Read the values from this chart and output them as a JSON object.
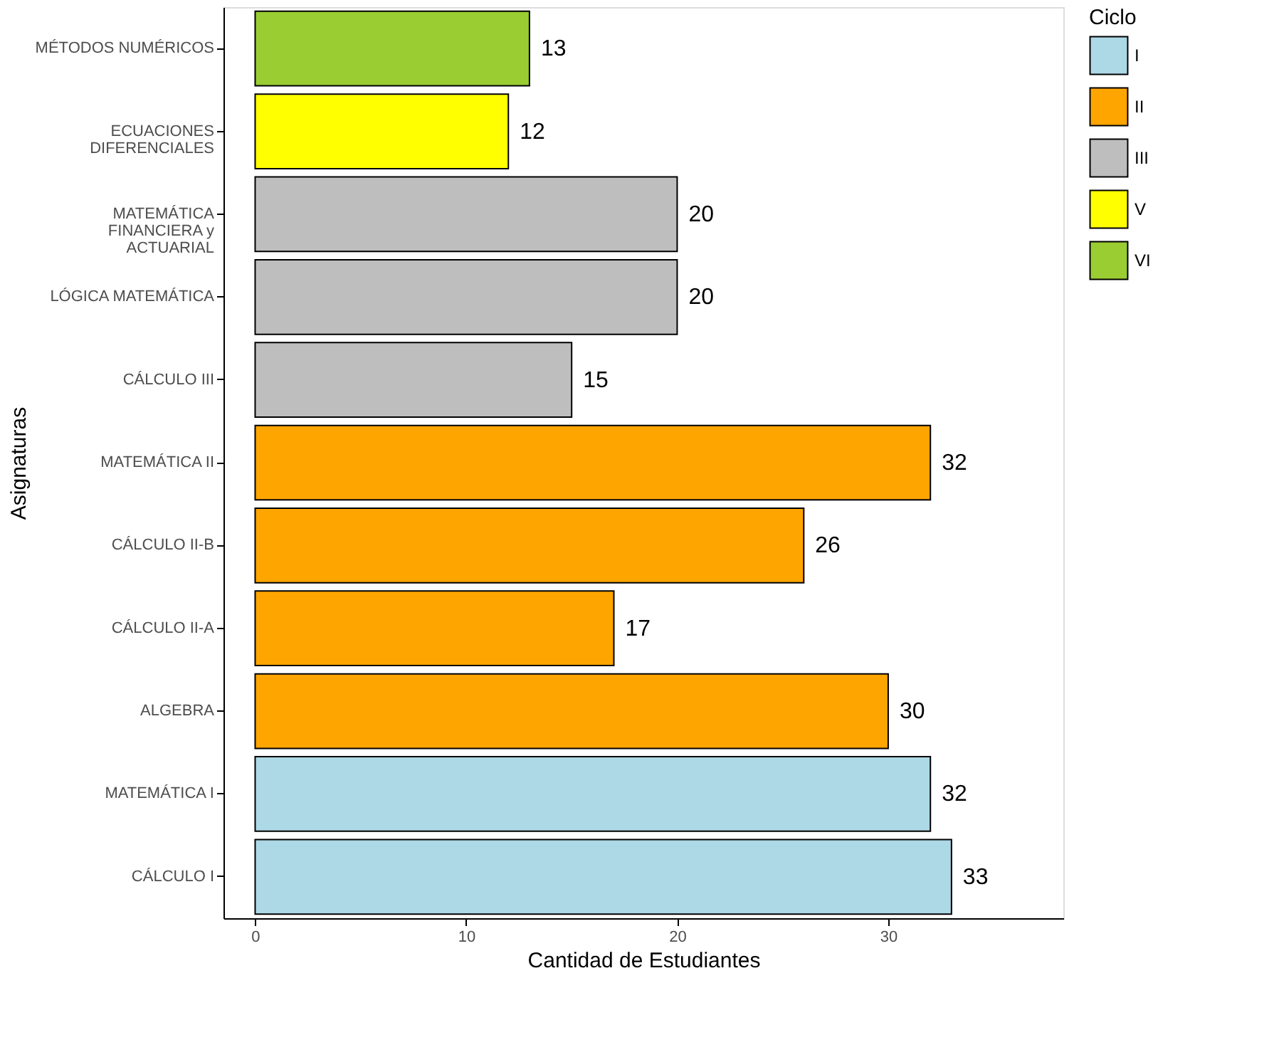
{
  "chart_data": {
    "type": "bar",
    "orientation": "horizontal",
    "xlabel": "Cantidad de Estudiantes",
    "ylabel": "Asignaturas",
    "legend_title": "Ciclo",
    "legend": "right",
    "grid": false,
    "data_labels": true,
    "categories": [
      "MÉTODOS NUMÉRICOS",
      "ECUACIONES\nDIFERENCIALES",
      "MATEMÁTICA\nFINANCIERA y\nACTUARIAL",
      "LÓGICA MATEMÁTICA",
      "CÁLCULO III",
      "MATEMÁTICA II",
      "CÁLCULO II-B",
      "CÁLCULO II-A",
      "ALGEBRA",
      "MATEMÁTICA I",
      "CÁLCULO I"
    ],
    "xlim": [
      -1.5,
      38.3
    ],
    "xticks": [
      0,
      10,
      20,
      30
    ],
    "series": [
      {
        "name": "I",
        "color": "#add8e6",
        "values": [
          null,
          null,
          null,
          null,
          null,
          null,
          null,
          null,
          null,
          32,
          33
        ]
      },
      {
        "name": "II",
        "color": "#ffa500",
        "values": [
          null,
          null,
          null,
          null,
          null,
          32,
          26,
          17,
          30,
          null,
          null
        ]
      },
      {
        "name": "III",
        "color": "#bebebe",
        "values": [
          null,
          null,
          20,
          20,
          15,
          null,
          null,
          null,
          null,
          null,
          null
        ]
      },
      {
        "name": "V",
        "color": "#ffff00",
        "values": [
          null,
          12,
          null,
          null,
          null,
          null,
          null,
          null,
          null,
          null,
          null
        ]
      },
      {
        "name": "VI",
        "color": "#9acd32",
        "values": [
          13,
          null,
          null,
          null,
          null,
          null,
          null,
          null,
          null,
          null,
          null
        ]
      }
    ]
  }
}
